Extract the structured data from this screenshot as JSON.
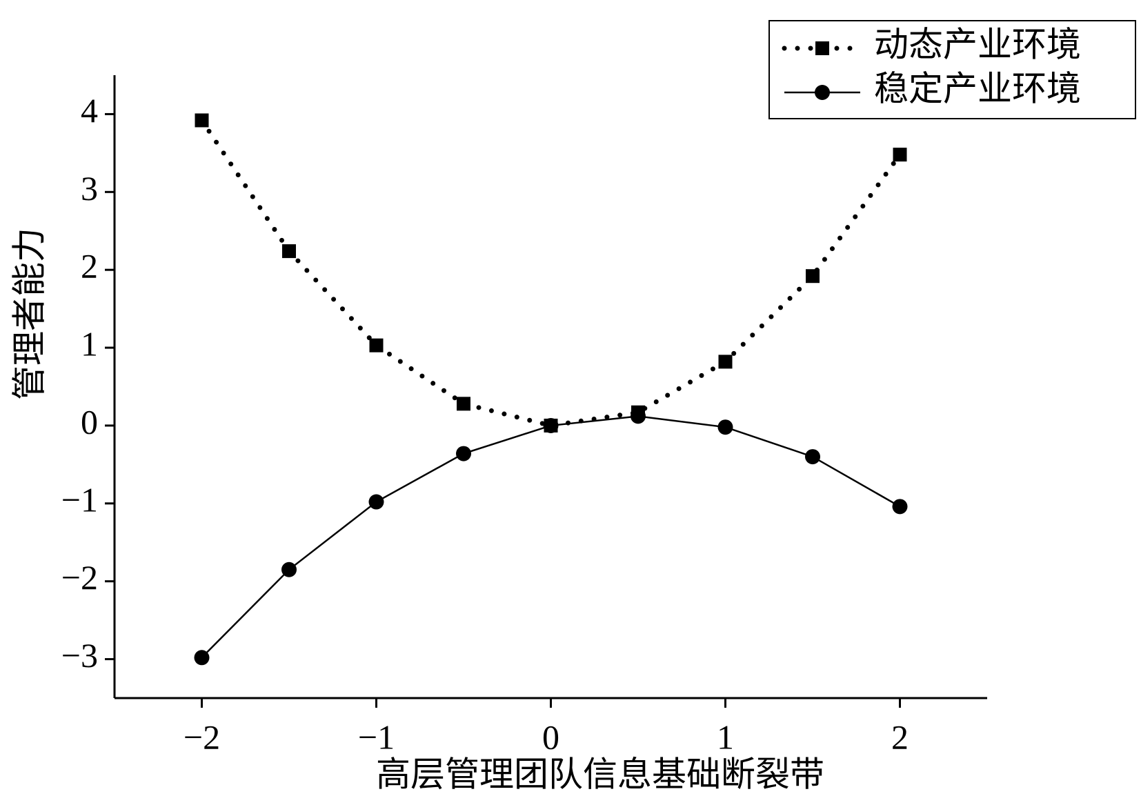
{
  "chart_data": {
    "type": "line",
    "x_label": "高层管理团队信息基础断裂带",
    "y_label": "管理者能力",
    "x": [
      -2,
      -1.5,
      -1,
      -0.5,
      0,
      0.5,
      1,
      1.5,
      2
    ],
    "series": [
      {
        "name": "动态产业环境",
        "color": "#000000",
        "marker": "square",
        "linestyle": "dotted",
        "values": [
          3.92,
          2.24,
          1.03,
          0.28,
          0,
          0.17,
          0.82,
          1.92,
          3.48
        ]
      },
      {
        "name": "稳定产业环境",
        "color": "#000000",
        "marker": "circle",
        "linestyle": "solid",
        "values": [
          -2.98,
          -1.85,
          -0.98,
          -0.36,
          0,
          0.12,
          -0.02,
          -0.4,
          -1.04
        ]
      }
    ],
    "xlim": [
      -2.5,
      2.5
    ],
    "ylim": [
      -3.5,
      4.5
    ],
    "xticks": [
      {
        "value": -2,
        "label": "−2"
      },
      {
        "value": -1,
        "label": "−1"
      },
      0,
      1,
      2
    ],
    "yticks": [
      {
        "value": -3,
        "label": "−3"
      },
      {
        "value": -2,
        "label": "−2"
      },
      {
        "value": -1,
        "label": "−1"
      },
      0,
      1,
      2,
      3,
      4
    ],
    "legend": "upper right"
  }
}
